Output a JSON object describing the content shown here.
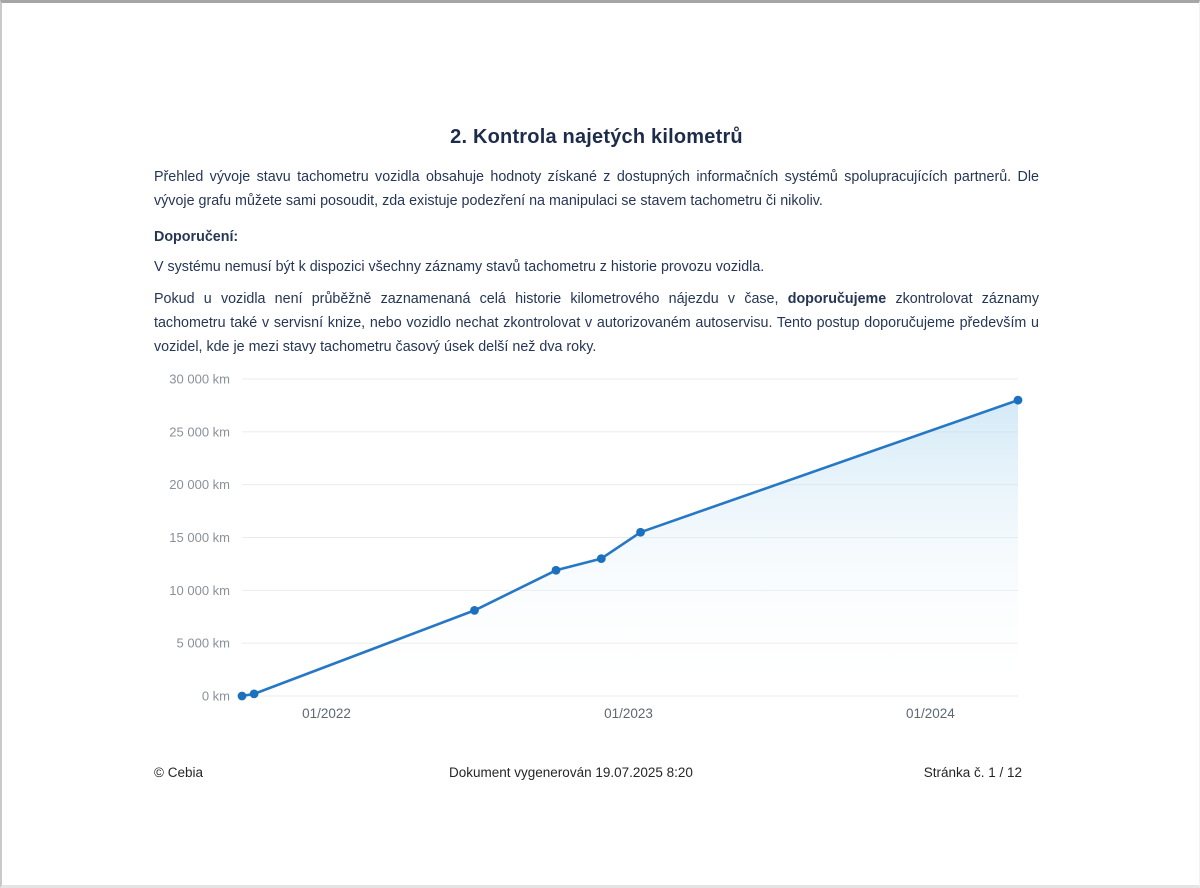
{
  "page": {
    "title": "2. Kontrola najetých kilometrů",
    "paragraph1": "Přehled vývoje stavu tachometru vozidla obsahuje hodnoty získané z dostupných informačních systémů spolupracujících partnerů. Dle vývoje grafu můžete sami posoudit, zda existuje podezření na manipulaci se stavem tachometru či nikoliv.",
    "recommendation_heading": "Doporučení:",
    "paragraph2": "V systému nemusí být k dispozici všechny záznamy stavů tachometru z historie provozu vozidla.",
    "paragraph3_run1": "Pokud u vozidla není průběžně zaznamenaná celá historie kilometrového nájezdu v čase, ",
    "paragraph3_bold": "doporučujeme",
    "paragraph3_run2": " zkontrolovat záznamy tachometru také v servisní knize, nebo vozidlo nechat zkontrolovat v autorizovaném autoservisu. Tento postup doporučujeme především u vozidel, kde je mezi stavy tachometru časový úsek delší než dva roky.",
    "text_color": "#263655",
    "title_color": "#1e2c4c"
  },
  "footer": {
    "copyright": "© Cebia",
    "generated": "Dokument vygenerován 19.07.2025 8:20",
    "page_number": "Stránka č. 1 / 12"
  },
  "chart_data": {
    "type": "area",
    "title": "",
    "xlabel": "",
    "ylabel": "km",
    "grid": true,
    "legend": false,
    "xlim_decimal_year": [
      2021.72,
      2024.29
    ],
    "ylim": [
      0,
      30000
    ],
    "x_ticks": [
      {
        "value": 2022.0,
        "label": "01/2022"
      },
      {
        "value": 2023.0,
        "label": "01/2023"
      },
      {
        "value": 2024.0,
        "label": "01/2024"
      }
    ],
    "y_ticks": [
      {
        "value": 0,
        "label": "0 km"
      },
      {
        "value": 5000,
        "label": "5 000 km"
      },
      {
        "value": 10000,
        "label": "10 000 km"
      },
      {
        "value": 15000,
        "label": "15 000 km"
      },
      {
        "value": 20000,
        "label": "20 000 km"
      },
      {
        "value": 25000,
        "label": "25 000 km"
      },
      {
        "value": 30000,
        "label": "30 000 km"
      }
    ],
    "points": [
      {
        "x_decimal_year": 2021.72,
        "km": 0
      },
      {
        "x_decimal_year": 2021.76,
        "km": 200
      },
      {
        "x_decimal_year": 2022.49,
        "km": 8100
      },
      {
        "x_decimal_year": 2022.76,
        "km": 11900
      },
      {
        "x_decimal_year": 2022.91,
        "km": 13000
      },
      {
        "x_decimal_year": 2023.04,
        "km": 15500
      },
      {
        "x_decimal_year": 2024.29,
        "km": 28000
      }
    ],
    "colors": {
      "line": "#2678c4",
      "marker": "#1d70be",
      "area_top": "#aed7ef",
      "area_bottom": "#ffffff",
      "grid": "#ebebeb",
      "y_tick_text": "#8a9099",
      "x_tick_text": "#5f6872"
    }
  }
}
